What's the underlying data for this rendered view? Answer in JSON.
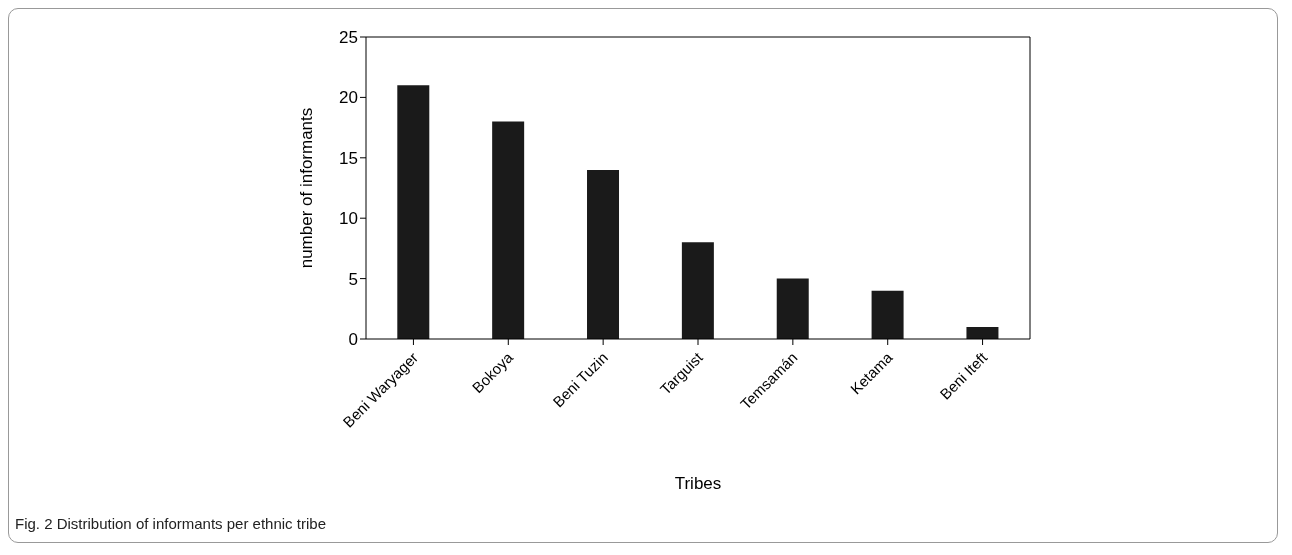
{
  "chart_data": {
    "type": "bar",
    "xlabel": "Tribes",
    "ylabel": "number of informants",
    "categories": [
      "Beni Waryager",
      "Bokoya",
      "Beni Tuzin",
      "Targuist",
      "Temsamán",
      "Ketama",
      "Beni Iteft"
    ],
    "values": [
      21,
      18,
      14,
      8,
      5,
      4,
      1
    ],
    "color": "#1a1a1a",
    "ylim": [
      0,
      25
    ],
    "yticks": [
      0,
      5,
      10,
      15,
      20,
      25
    ],
    "annotations": [
      "Fig. 2 Distribution of informants per ethnic tribe"
    ]
  }
}
